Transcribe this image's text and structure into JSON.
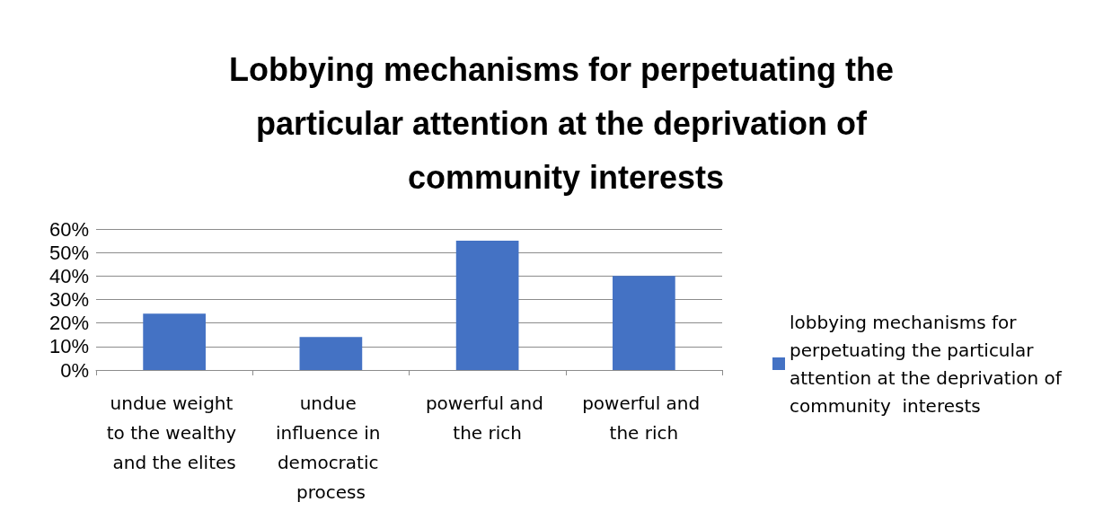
{
  "chart_data": {
    "type": "bar",
    "title": "Lobbying mechanisms for perpetuating the particular attention at the deprivation of community interests",
    "categories": [
      "undue weight to the wealthy and the elites",
      "undue influence in democratic process",
      "powerful and the rich",
      "powerful and the rich"
    ],
    "series": [
      {
        "name": "lobbying mechanisms for perpetuating the particular attention at the deprivation of community  interests",
        "color": "#4472c4",
        "values": [
          24,
          14,
          55,
          40
        ]
      }
    ],
    "ylim": [
      0,
      60
    ],
    "yticks": [
      {
        "value": 0,
        "label": "0%"
      },
      {
        "value": 10,
        "label": "10%"
      },
      {
        "value": 20,
        "label": "20%"
      },
      {
        "value": 30,
        "label": "30%"
      },
      {
        "value": 40,
        "label": "40%"
      },
      {
        "value": 50,
        "label": "50%"
      },
      {
        "value": 60,
        "label": "60%"
      }
    ],
    "grid": "y",
    "legend": "right"
  }
}
